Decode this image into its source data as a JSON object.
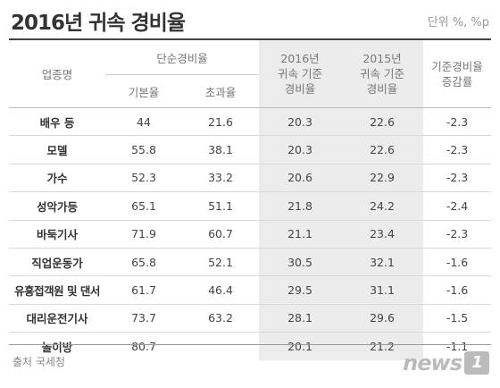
{
  "title": "2016년 귀속 경비율",
  "unit": "단위 %, %p",
  "header": {
    "industry": "업종명",
    "simple_rate": "단순경비율",
    "basic_rate": "기본율",
    "excess_rate": "초과율",
    "std_2016": "2016년\n귀속 기준\n경비율",
    "std_2015": "2015년\n귀속 기준\n경비율",
    "std_change": "기준경비율\n증감률"
  },
  "rows": [
    {
      "name": "배우 등",
      "basic": "44",
      "excess": "21.6",
      "y2016": "20.3",
      "y2015": "22.6",
      "change": "-2.3"
    },
    {
      "name": "모델",
      "basic": "55.8",
      "excess": "38.1",
      "y2016": "20.3",
      "y2015": "22.6",
      "change": "-2.3"
    },
    {
      "name": "가수",
      "basic": "52.3",
      "excess": "33.2",
      "y2016": "20.6",
      "y2015": "22.9",
      "change": "-2.3"
    },
    {
      "name": "성악가등",
      "basic": "65.1",
      "excess": "51.1",
      "y2016": "21.8",
      "y2015": "24.2",
      "change": "-2.4"
    },
    {
      "name": "바둑기사",
      "basic": "71.9",
      "excess": "60.7",
      "y2016": "21.1",
      "y2015": "23.4",
      "change": "-2.3"
    },
    {
      "name": "직업운동가",
      "basic": "65.8",
      "excess": "52.1",
      "y2016": "30.5",
      "y2015": "32.1",
      "change": "-1.6"
    },
    {
      "name": "유흥접객원 및 댄서",
      "basic": "61.7",
      "excess": "46.4",
      "y2016": "29.5",
      "y2015": "31.1",
      "change": "-1.6"
    },
    {
      "name": "대리운전기사",
      "basic": "73.7",
      "excess": "63.2",
      "y2016": "28.1",
      "y2015": "29.6",
      "change": "-1.5"
    },
    {
      "name": "놀이방",
      "basic": "80.7",
      "excess": "",
      "y2016": "20.1",
      "y2015": "21.2",
      "change": "-1.1"
    }
  ],
  "source": "출처 국세청",
  "logo": {
    "text": "news",
    "badge": "1"
  }
}
